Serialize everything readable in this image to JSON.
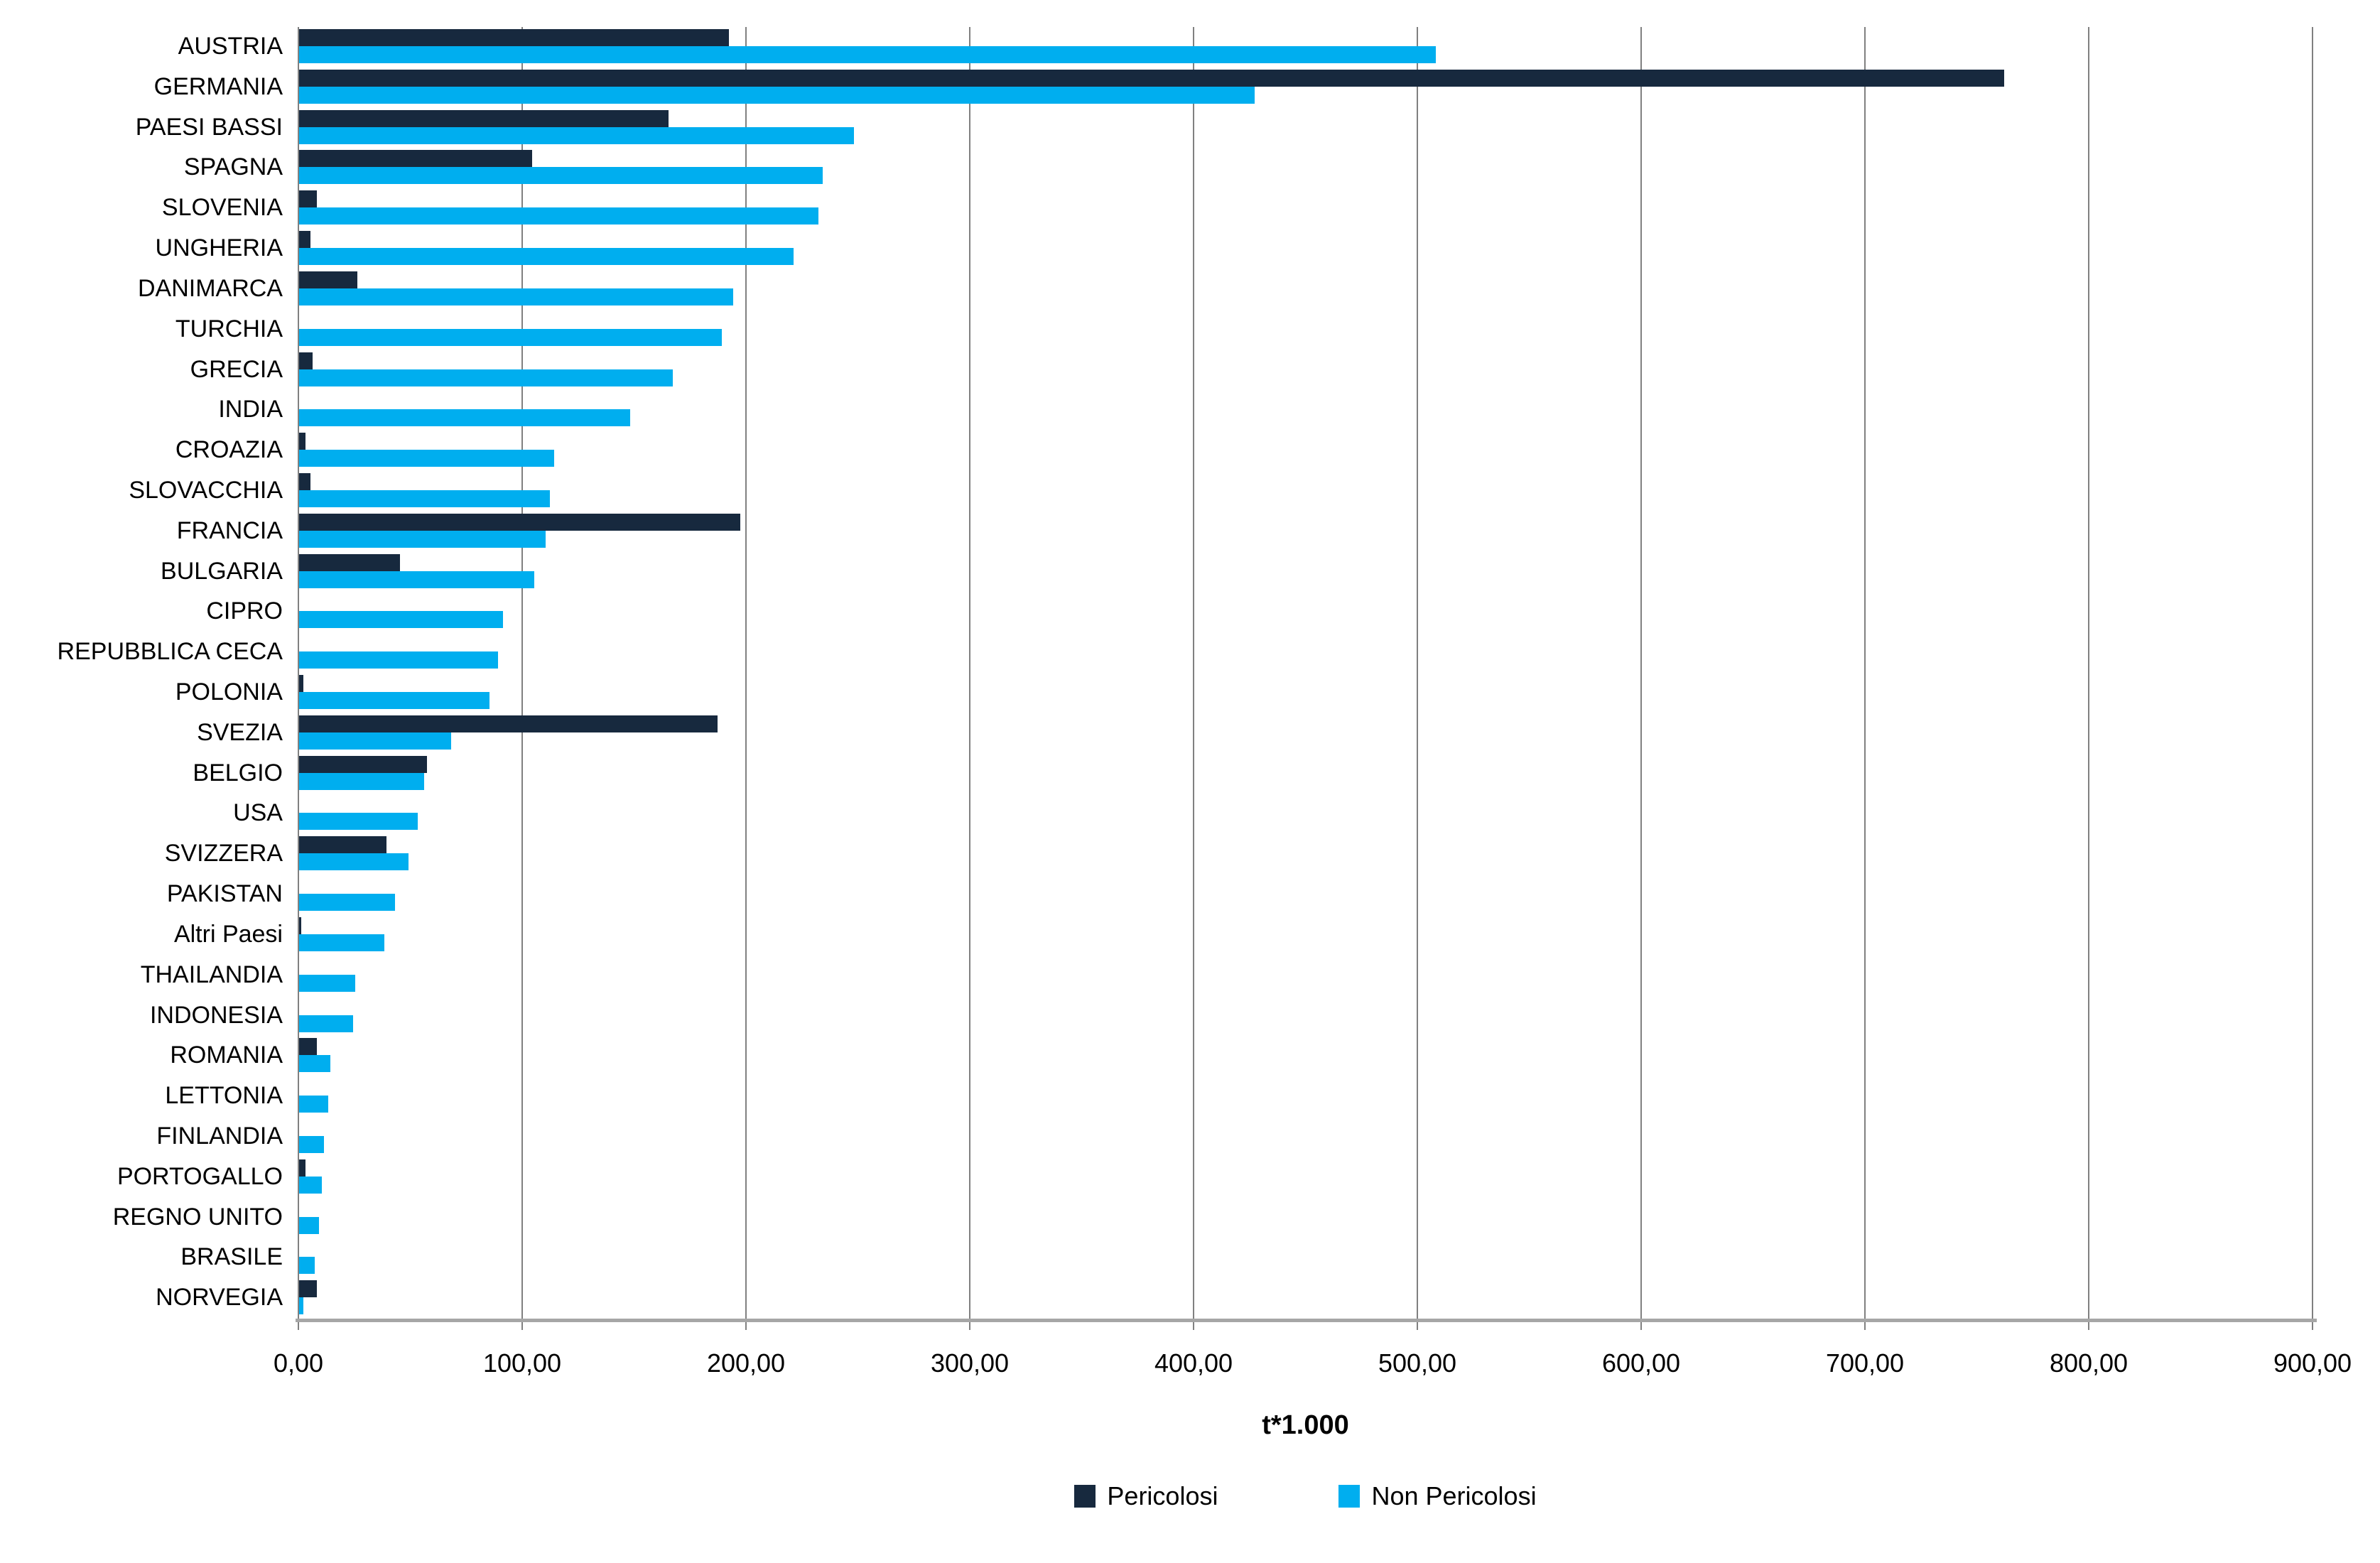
{
  "chart_data": {
    "type": "bar",
    "orientation": "horizontal",
    "title": "",
    "xlabel": "t*1.000",
    "xlim": [
      0,
      900
    ],
    "xtick_step": 100,
    "xtick_labels": [
      "0,00",
      "100,00",
      "200,00",
      "300,00",
      "400,00",
      "500,00",
      "600,00",
      "700,00",
      "800,00",
      "900,00"
    ],
    "grid": "vertical-gridlines-on",
    "legend_position": "bottom-center",
    "categories": [
      "AUSTRIA",
      "GERMANIA",
      "PAESI BASSI",
      "SPAGNA",
      "SLOVENIA",
      "UNGHERIA",
      "DANIMARCA",
      "TURCHIA",
      "GRECIA",
      "INDIA",
      "CROAZIA",
      "SLOVACCHIA",
      "FRANCIA",
      "BULGARIA",
      "CIPRO",
      "REPUBBLICA CECA",
      "POLONIA",
      "SVEZIA",
      "BELGIO",
      "USA",
      "SVIZZERA",
      "PAKISTAN",
      "Altri Paesi",
      "THAILANDIA",
      "INDONESIA",
      "ROMANIA",
      "LETTONIA",
      "FINLANDIA",
      "PORTOGALLO",
      "REGNO UNITO",
      "BRASILE",
      "NORVEGIA"
    ],
    "series": [
      {
        "name": "Pericolosi",
        "color": "#17293E",
        "values": [
          192,
          762,
          165,
          104,
          8,
          5,
          26,
          0,
          6,
          0,
          3,
          5,
          197,
          45,
          0,
          0,
          2,
          187,
          57,
          0,
          39,
          0,
          1,
          0,
          0,
          8,
          0,
          0,
          3,
          0,
          0,
          8
        ]
      },
      {
        "name": "Non Pericolosi",
        "color": "#00AEEF",
        "values": [
          508,
          427,
          248,
          234,
          232,
          221,
          194,
          189,
          167,
          148,
          114,
          112,
          110,
          105,
          91,
          89,
          85,
          68,
          56,
          53,
          49,
          43,
          38,
          25,
          24,
          14,
          13,
          11,
          10,
          9,
          7,
          2
        ]
      }
    ],
    "colors": {
      "gridline": "#808080",
      "axis_line": "#a6a6a6",
      "text": "#000000",
      "background": "#ffffff"
    }
  }
}
